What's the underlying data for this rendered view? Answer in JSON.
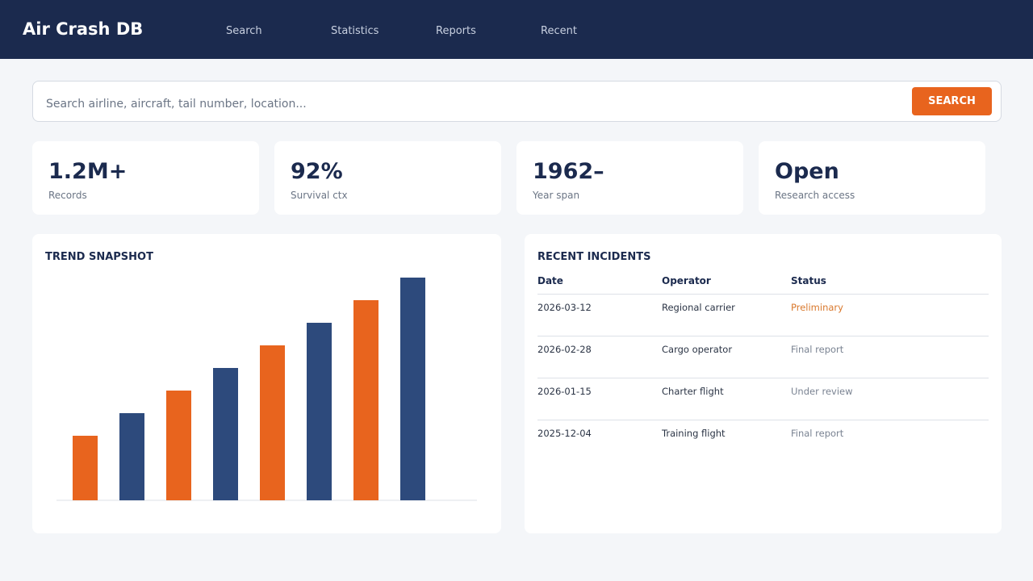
{
  "header": {
    "title": "Air Crash DB",
    "nav": [
      "Search",
      "Statistics",
      "Reports",
      "Recent"
    ]
  },
  "search": {
    "placeholder": "Search airline, aircraft, tail number, location...",
    "button": "SEARCH"
  },
  "stats": [
    {
      "value": "1.2M+",
      "label": "Records"
    },
    {
      "value": "92%",
      "label": "Survival ctx"
    },
    {
      "value": "1962–",
      "label": "Year span"
    },
    {
      "value": "Open",
      "label": "Research access"
    }
  ],
  "chart_data": {
    "type": "bar",
    "title": "TREND SNAPSHOT",
    "categories": [
      null,
      null,
      null,
      null,
      null,
      null,
      null,
      null
    ],
    "values": [
      80,
      108,
      136,
      164,
      192,
      220,
      248,
      276
    ],
    "colors": [
      "#e8641e",
      "#2d4a7c",
      "#e8641e",
      "#2d4a7c",
      "#e8641e",
      "#2d4a7c",
      "#e8641e",
      "#2d4a7c"
    ],
    "ylim": [
      0,
      300
    ]
  },
  "incidents": {
    "title": "RECENT INCIDENTS",
    "columns": [
      "Date",
      "Operator",
      "Status"
    ],
    "rows": [
      [
        "2026-03-12",
        "Regional carrier",
        "Preliminary"
      ],
      [
        "2026-02-28",
        "Cargo operator",
        "Final report"
      ],
      [
        "2026-01-15",
        "Charter flight",
        "Under review"
      ],
      [
        "2025-12-04",
        "Training flight",
        "Final report"
      ]
    ]
  }
}
